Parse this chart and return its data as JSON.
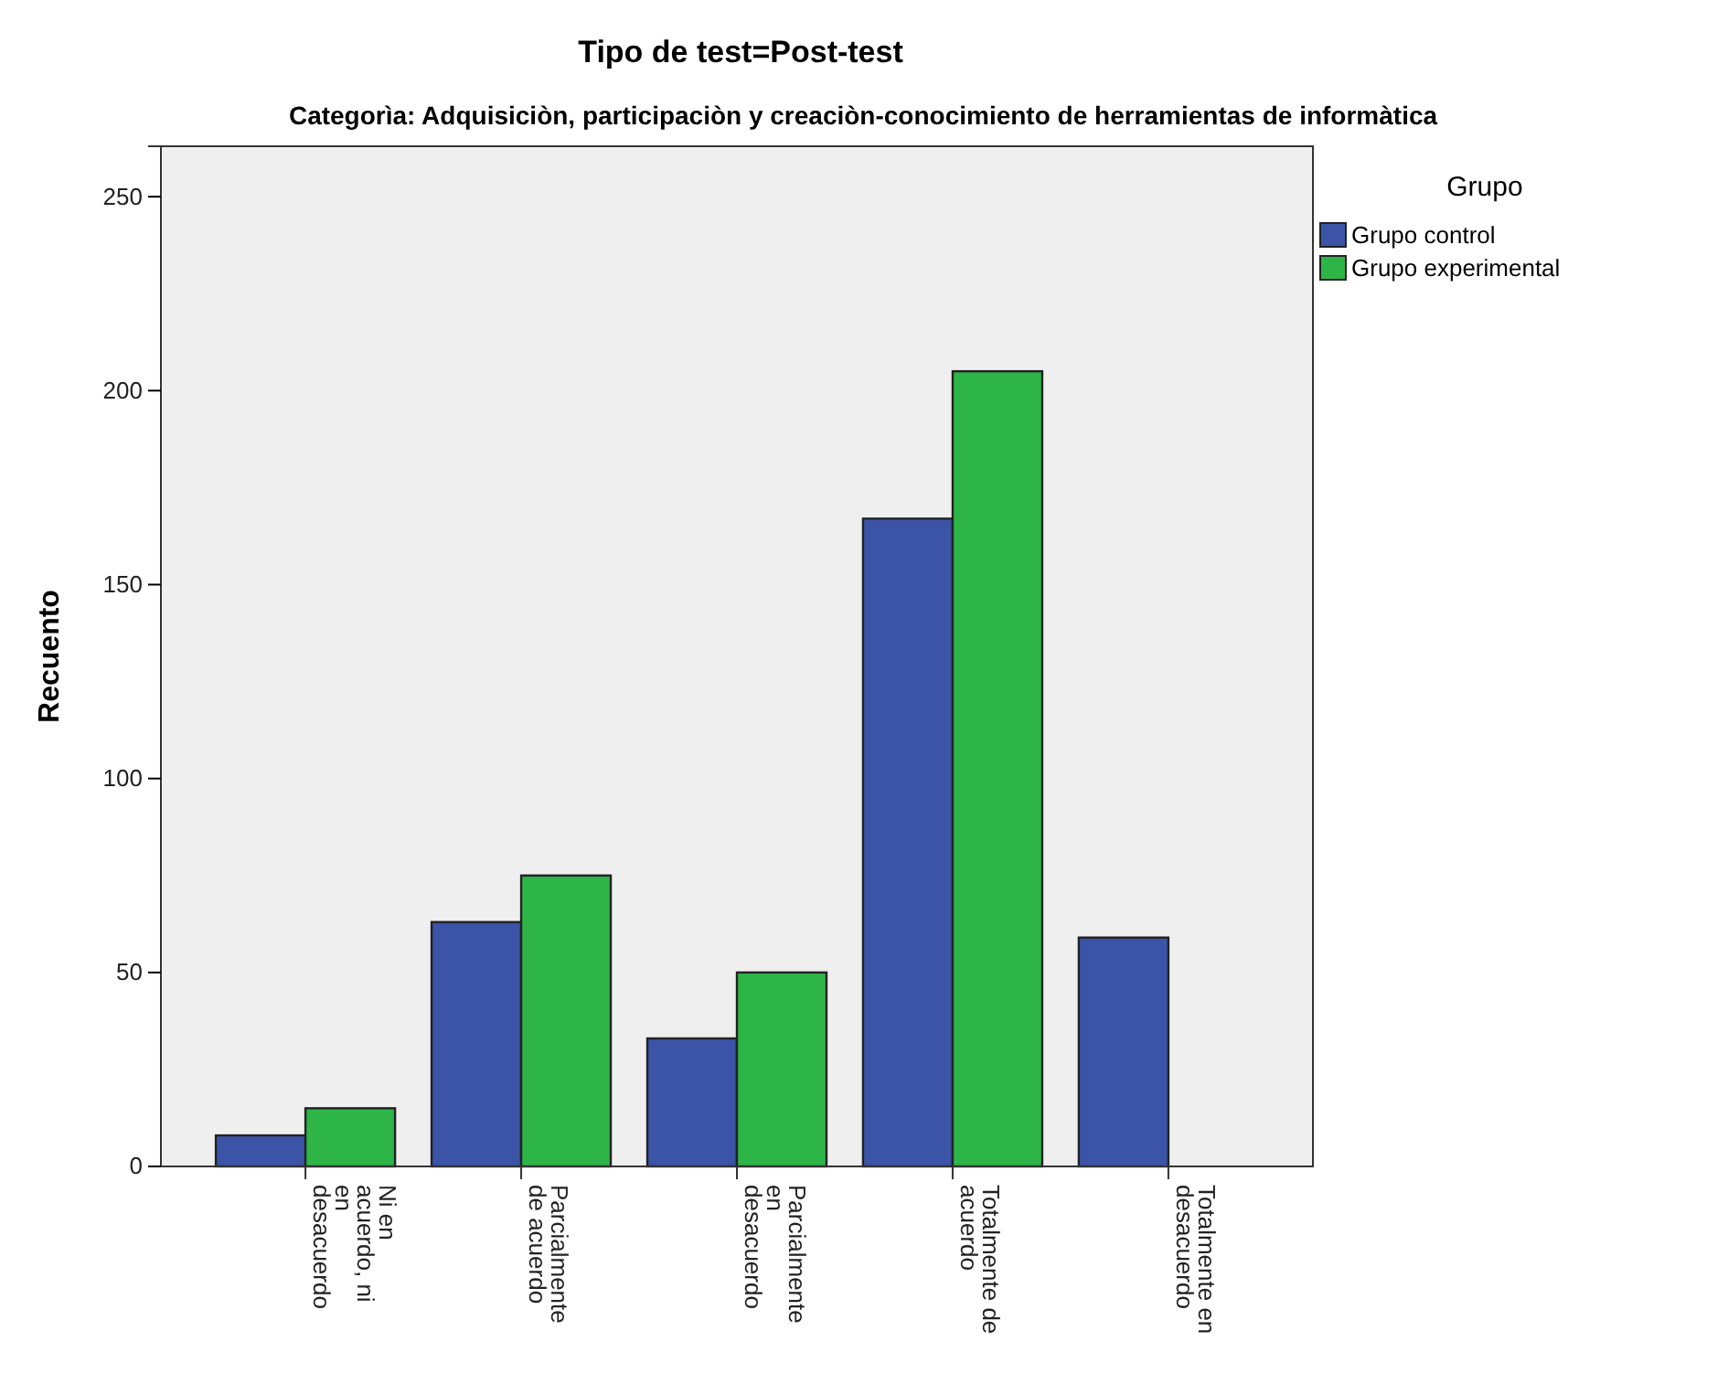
{
  "chart_data": {
    "type": "bar",
    "title": "Tipo de test=Post-test",
    "subtitle": "Categorìa: Adquisiciòn, participaciòn y creaciòn-conocimiento de herramientas de informàtica",
    "ylabel": "Recuento",
    "legend_title": "Grupo",
    "legend": "right",
    "categories": [
      "Ni en acuerdo, ni en desacuerdo",
      "Parcialmente de acuerdo",
      "Parcialmente en desacuerdo",
      "Totalmente de acuerdo",
      "Totalmente en desacuerdo"
    ],
    "series": [
      {
        "name": "Grupo control",
        "color": "#3b54a8",
        "values": [
          8,
          63,
          33,
          167,
          59
        ]
      },
      {
        "name": "Grupo experimental",
        "color": "#2eb548",
        "values": [
          15,
          75,
          50,
          205,
          0
        ]
      }
    ],
    "ylim": [
      0,
      263
    ],
    "yticks": [
      0,
      50,
      100,
      150,
      200,
      250
    ],
    "grid": false
  }
}
